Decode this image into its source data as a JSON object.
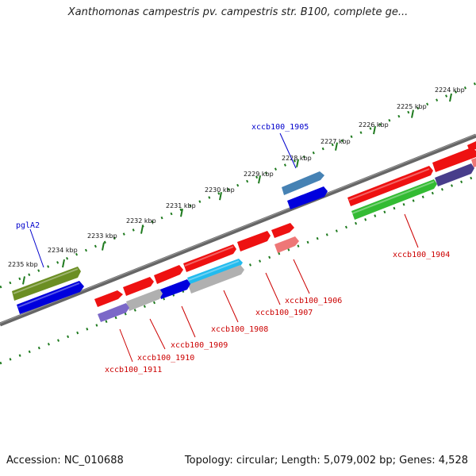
{
  "header": {
    "title": "Xanthomonas campestris pv. campestris str. B100, complete ge..."
  },
  "footer": {
    "accession": "Accession: NC_010688",
    "summary": "Topology: circular; Length: 5,079,002 bp; Genes: 4,528"
  },
  "scale": {
    "ticks": [
      "2224 kbp",
      "2225 kbp",
      "2226 kbp",
      "2227 kbp",
      "2228 kbp",
      "2229 kbp",
      "2230 kbp",
      "2231 kbp",
      "2232 kbp",
      "2233 kbp",
      "2234 kbp",
      "2235 kbp"
    ]
  },
  "gene_labels": {
    "xccb100_1905": "xccb100_1905",
    "pglA2": "pglA2",
    "xccb100_1904": "xccb100_1904",
    "xccb100_1906": "xccb100_1906",
    "xccb100_1907": "xccb100_1907",
    "xccb100_1908": "xccb100_1908",
    "xccb100_1909": "xccb100_1909",
    "xccb100_1910": "xccb100_1910",
    "xccb100_1911": "xccb100_1911"
  },
  "colors": {
    "backbone": "#666666",
    "tick_green": "#1e7a1e",
    "red_gene": "#ee1111",
    "blue_gene": "#0000dd",
    "olive_gene": "#6b8e23",
    "green_gene": "#33bb33",
    "steel_gene": "#4682b4",
    "cyan_gene": "#22bbee",
    "grey_gene": "#b0b0b0",
    "purple_gene": "#7b68c8",
    "pink_gene": "#ee7777",
    "navy_gene": "#483d8b",
    "label_red": "#cc0000",
    "label_blue": "#0000cc"
  }
}
